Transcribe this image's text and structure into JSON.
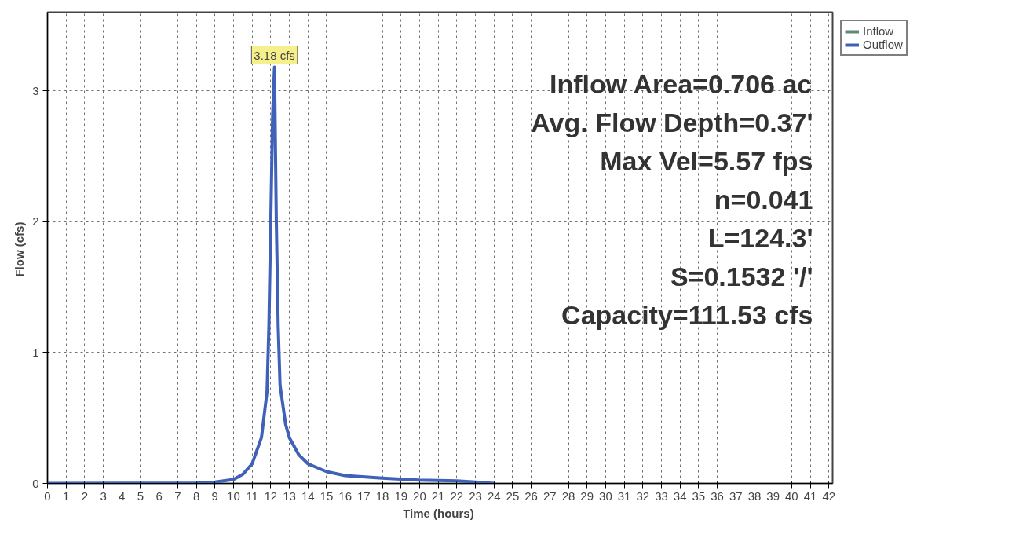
{
  "chart_data": {
    "type": "line",
    "xlabel": "Time  (hours)",
    "ylabel": "Flow  (cfs)",
    "x": [
      0,
      8,
      9,
      10,
      10.5,
      11,
      11.5,
      11.8,
      11.9,
      12.0,
      12.1,
      12.2,
      12.3,
      12.4,
      12.5,
      12.8,
      13,
      13.5,
      14,
      15,
      16,
      18,
      20,
      22,
      23,
      24
    ],
    "series": [
      {
        "name": "Inflow",
        "color": "#5f8a78",
        "values": [
          null,
          null,
          null,
          null,
          null,
          null,
          null,
          null,
          null,
          null,
          null,
          null,
          null,
          null,
          null,
          null,
          null,
          null,
          null,
          null,
          null,
          null,
          null,
          null,
          null,
          null
        ]
      },
      {
        "name": "Outflow",
        "color": "#3f62b8",
        "values": [
          0,
          0.003,
          0.01,
          0.03,
          0.07,
          0.15,
          0.35,
          0.7,
          1.2,
          2.0,
          2.8,
          3.18,
          2.0,
          1.2,
          0.75,
          0.45,
          0.35,
          0.22,
          0.15,
          0.09,
          0.06,
          0.04,
          0.025,
          0.02,
          0.01,
          0
        ]
      }
    ],
    "xlim": [
      0,
      42.2
    ],
    "ylim": [
      0,
      3.6
    ],
    "xticks": [
      0,
      1,
      2,
      3,
      4,
      5,
      6,
      7,
      8,
      9,
      10,
      11,
      12,
      13,
      14,
      15,
      16,
      17,
      18,
      19,
      20,
      21,
      22,
      23,
      24,
      25,
      26,
      27,
      28,
      29,
      30,
      31,
      32,
      33,
      34,
      35,
      36,
      37,
      38,
      39,
      40,
      41,
      42
    ],
    "yticks": [
      0,
      1,
      2,
      3
    ],
    "grid": true,
    "legend": "top right",
    "line_style": "solid",
    "marker": "none",
    "annotations": [
      {
        "text": "3.18 cfs",
        "x": 12.2,
        "y": 3.18
      },
      "Inflow Area=0.706 ac",
      "Avg. Flow Depth=0.37'",
      "Max Vel=5.57 fps",
      "n=0.041",
      "L=124.3'",
      "S=0.1532 '/'",
      "Capacity=111.53 cfs"
    ]
  }
}
